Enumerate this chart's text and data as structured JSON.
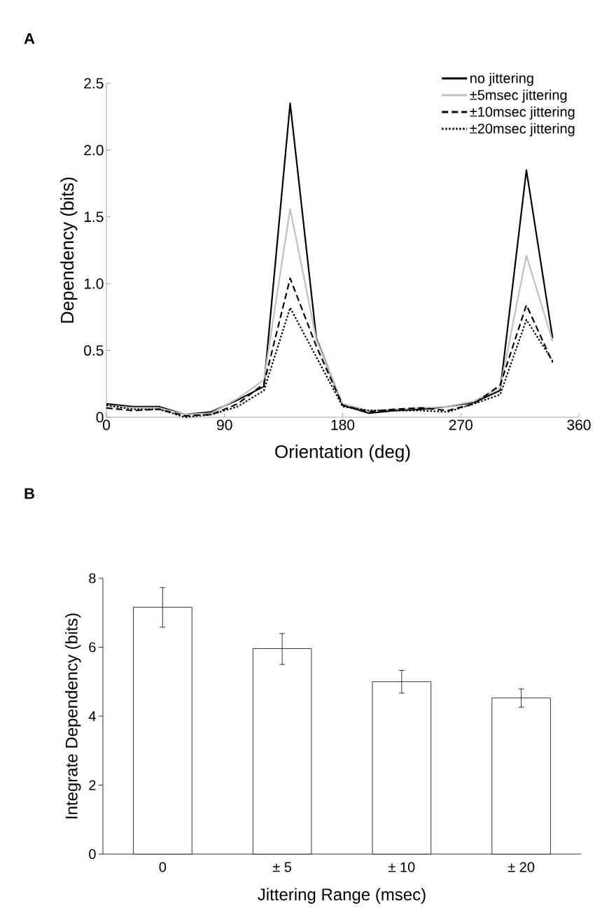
{
  "chart_data": [
    {
      "type": "line",
      "title": "A",
      "xlabel": "Orientation (deg)",
      "ylabel": "Dependency (bits)",
      "x": [
        0,
        20,
        40,
        60,
        80,
        100,
        120,
        140,
        160,
        180,
        200,
        220,
        240,
        260,
        280,
        300,
        320,
        340
      ],
      "xlim": [
        0,
        360
      ],
      "xticks": [
        0,
        90,
        180,
        270,
        360
      ],
      "ylim": [
        0,
        2.5
      ],
      "yticks": [
        0,
        {
          "value": 0.5,
          "label": "0.5"
        },
        {
          "value": 1,
          "label": "1.0"
        },
        {
          "value": 1.5,
          "label": "1.5"
        },
        {
          "value": 2,
          "label": "2.0"
        },
        {
          "value": 2.5,
          "label": "2.5"
        }
      ],
      "legend": "top right",
      "marker": "none",
      "series": [
        {
          "name": "no jittering",
          "color": "#000000",
          "line_style": "solid",
          "values": [
            0.1,
            0.08,
            0.08,
            0.02,
            0.04,
            0.13,
            0.23,
            2.35,
            0.59,
            0.09,
            0.03,
            0.05,
            0.06,
            0.08,
            0.11,
            0.2,
            1.85,
            0.59
          ]
        },
        {
          "name": "±5msec jittering",
          "color": "#c0c0c0",
          "line_style": "solid",
          "values": [
            0.09,
            0.07,
            0.07,
            0.02,
            0.03,
            0.14,
            0.28,
            1.56,
            0.58,
            0.1,
            0.05,
            0.06,
            0.07,
            0.08,
            0.12,
            0.22,
            1.21,
            0.57
          ]
        },
        {
          "name": "±10msec jittering",
          "color": "#000000",
          "line_style": "dashed",
          "values": [
            0.07,
            0.05,
            0.06,
            0.01,
            0.02,
            0.1,
            0.25,
            1.04,
            0.53,
            0.09,
            0.04,
            0.06,
            0.07,
            0.05,
            0.1,
            0.24,
            0.84,
            0.41
          ]
        },
        {
          "name": "±20msec jittering",
          "color": "#000000",
          "line_style": "dotted",
          "values": [
            0.09,
            0.06,
            0.06,
            0.0,
            0.02,
            0.08,
            0.2,
            0.82,
            0.45,
            0.08,
            0.05,
            0.05,
            0.05,
            0.04,
            0.1,
            0.17,
            0.73,
            0.42
          ]
        }
      ]
    },
    {
      "type": "bar",
      "title": "B",
      "xlabel": "Jittering Range (msec)",
      "ylabel": "Integrate Dependency (bits)",
      "categories": [
        "0",
        "± 5",
        "± 10",
        "± 20"
      ],
      "values": [
        7.16,
        5.96,
        5.0,
        4.53
      ],
      "errors": [
        [
          6.58,
          7.73
        ],
        [
          5.5,
          6.4
        ],
        [
          4.67,
          5.33
        ],
        [
          4.26,
          4.79
        ]
      ],
      "color": "#ffffff",
      "ylim": [
        0,
        8
      ],
      "yticks": [
        0,
        2,
        4,
        6,
        8
      ]
    }
  ]
}
